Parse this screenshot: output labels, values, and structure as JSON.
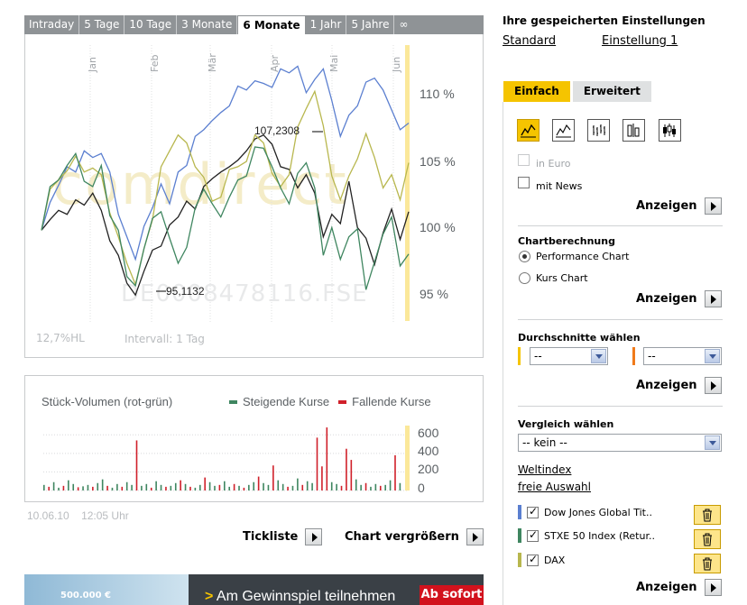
{
  "period_tabs": [
    "Intraday",
    "5 Tage",
    "10 Tage",
    "3 Monate",
    "6 Monate",
    "1 Jahr",
    "5 Jahre",
    "∞"
  ],
  "active_period": "6 Monate",
  "main_chart": {
    "watermark": "comdirect",
    "isin_watermark": "DE0008478116.FSE",
    "hl_label": "12,7%HL",
    "interval_label": "Intervall: 1 Tag",
    "annotation_high": "107,2308",
    "annotation_low": "95,1132",
    "y_ticks": [
      "110 %",
      "105 %",
      "100 %",
      "95 %"
    ],
    "month_labels": [
      "Jan",
      "Feb",
      "Mär",
      "Apr",
      "Mai",
      "Jun"
    ]
  },
  "chart_data": [
    {
      "type": "line",
      "x": [
        0,
        3,
        6,
        9,
        12,
        15,
        18,
        21,
        24,
        27,
        30,
        33,
        36,
        39,
        42,
        45,
        48,
        51,
        54,
        57,
        60,
        63,
        66,
        69,
        72,
        75,
        78,
        81,
        84,
        87,
        90,
        93,
        96,
        99,
        102,
        105,
        108,
        111,
        114,
        117,
        120,
        123,
        126,
        129
      ],
      "series": [
        {
          "color": "#222222",
          "values": [
            100,
            100.8,
            101.5,
            101.2,
            102.3,
            101.9,
            102.8,
            101.5,
            99.2,
            98.1,
            96.0,
            95.1,
            96.9,
            98.5,
            98.8,
            100.4,
            101.0,
            102.2,
            101.6,
            103.3,
            103.9,
            104.4,
            104.8,
            105.3,
            106.0,
            106.9,
            107.2,
            106.5,
            104.8,
            104.6,
            103.2,
            104.2,
            102.8,
            99.5,
            101.2,
            100.5,
            103.7,
            100.2,
            99.4,
            97.4,
            99.8,
            101.6,
            99.3,
            101.4
          ]
        },
        {
          "color": "#5b7fd0",
          "values": [
            100,
            102.1,
            103.4,
            104.8,
            104.4,
            106.0,
            105.5,
            105.8,
            104.4,
            101.2,
            99.5,
            97.8,
            100.3,
            101.7,
            103.5,
            102.0,
            104.4,
            104.9,
            107.1,
            107.6,
            108.3,
            108.9,
            109.4,
            110.9,
            110.6,
            111.3,
            111.1,
            110.8,
            112.2,
            111.9,
            112.4,
            110.4,
            111.4,
            112.2,
            109.8,
            107.1,
            108.7,
            109.4,
            111.2,
            111.5,
            110.6,
            109.1,
            107.6,
            108.1
          ]
        },
        {
          "color": "#b8b74e",
          "values": [
            100,
            103.1,
            103.8,
            104.5,
            105.6,
            104.4,
            104.7,
            104.2,
            101.3,
            99.5,
            97.5,
            95.9,
            98.6,
            100.8,
            104.8,
            106.0,
            107.2,
            106.6,
            104.8,
            104.0,
            102.2,
            102.5,
            104.6,
            104.8,
            105.2,
            107.2,
            106.6,
            104.3,
            103.3,
            104.2,
            107.8,
            109.2,
            110.5,
            107.9,
            104.1,
            102.3,
            104.1,
            105.4,
            107.3,
            105.5,
            103.2,
            104.2,
            102.3,
            105.1
          ]
        },
        {
          "color": "#3f8660",
          "values": [
            100,
            103.3,
            103.8,
            104.9,
            105.8,
            103.7,
            103.3,
            104.9,
            101.1,
            100.0,
            96.5,
            95.8,
            98.6,
            100.9,
            101.4,
            99.4,
            97.5,
            98.7,
            101.7,
            103.1,
            102.0,
            101.0,
            102.5,
            103.8,
            104.1,
            106.3,
            106.2,
            104.8,
            103.2,
            102.0,
            104.3,
            105.1,
            103.2,
            98.1,
            100.2,
            97.8,
            99.5,
            100.1,
            95.5,
            97.6,
            99.7,
            101.0,
            97.3,
            98.2
          ]
        }
      ],
      "y_ticks": [
        "110 %",
        "105 %",
        "100 %",
        "95 %"
      ],
      "x_labels": [
        "Jan",
        "Feb",
        "Mär",
        "Apr",
        "Mai",
        "Jun"
      ],
      "ylim": [
        93,
        114
      ]
    },
    {
      "type": "bar",
      "title": "Stück-Volumen (rot-grün)",
      "legend": [
        "Steigende Kurse",
        "Fallende Kurse"
      ],
      "legend_colors": [
        "#3f8660",
        "#d0202a"
      ],
      "y_ticks": [
        "600",
        "400",
        "200",
        "0"
      ],
      "ylim": [
        0,
        700
      ],
      "values": [
        60,
        40,
        90,
        30,
        50,
        110,
        70,
        35,
        45,
        60,
        40,
        80,
        120,
        50,
        30,
        70,
        40,
        90,
        60,
        540,
        50,
        70,
        30,
        100,
        60,
        40,
        50,
        80,
        110,
        70,
        40,
        30,
        60,
        140,
        90,
        50,
        60,
        100,
        40,
        70,
        50,
        30,
        60,
        90,
        150,
        80,
        60,
        270,
        110,
        70,
        40,
        50,
        130,
        60,
        100,
        80,
        570,
        260,
        680,
        90,
        70,
        50,
        450,
        330,
        120,
        60,
        80,
        40,
        70,
        50,
        60,
        110,
        380,
        80
      ],
      "colors": [
        "g",
        "r",
        "g",
        "g",
        "r",
        "g",
        "g",
        "r",
        "g",
        "g",
        "r",
        "g",
        "g",
        "r",
        "g",
        "g",
        "r",
        "g",
        "g",
        "r",
        "g",
        "g",
        "r",
        "g",
        "g",
        "r",
        "g",
        "g",
        "r",
        "g",
        "r",
        "g",
        "g",
        "r",
        "g",
        "g",
        "r",
        "g",
        "g",
        "r",
        "g",
        "r",
        "g",
        "g",
        "r",
        "g",
        "g",
        "r",
        "g",
        "g",
        "r",
        "g",
        "g",
        "r",
        "g",
        "g",
        "r",
        "r",
        "r",
        "g",
        "g",
        "r",
        "r",
        "r",
        "g",
        "g",
        "r",
        "g",
        "g",
        "r",
        "g",
        "g",
        "r",
        "g"
      ]
    }
  ],
  "volume_chart": {
    "title": "Stück-Volumen (rot-grün)",
    "legend_up": "Steigende Kurse",
    "legend_down": "Fallende Kurse",
    "y_ticks": [
      "600",
      "400",
      "200",
      "0"
    ]
  },
  "timestamp": {
    "date": "10.06.10",
    "time": "12:05 Uhr"
  },
  "actions": {
    "tickliste": "Tickliste",
    "chart_vergroessern": "Chart vergrößern"
  },
  "banner": {
    "image_text": "500.000 €",
    "text_prefix": ">",
    "text": " Am Gewinnspiel teilnehmen",
    "button": "Ab sofort"
  },
  "settings": {
    "title": "Ihre gespeicherten Einstellungen",
    "link_standard": "Standard",
    "link_einstellung": "Einstellung 1"
  },
  "panel_tabs": {
    "simple": "Einfach",
    "advanced": "Erweitert"
  },
  "chart_types": [
    "line-chart-icon",
    "line-chart-icon",
    "ohlc-chart-icon",
    "bar-chart-icon",
    "candlestick-chart-icon"
  ],
  "options": {
    "in_euro": "in Euro",
    "mit_news": "mit News",
    "show": "Anzeigen"
  },
  "calculation": {
    "title": "Chartberechnung",
    "performance": "Performance Chart",
    "kurs": "Kurs Chart"
  },
  "averages": {
    "title": "Durchschnitte wählen",
    "select1": "--",
    "select2": "--",
    "color1": "#f5c400",
    "color2": "#f07a1a"
  },
  "comparison": {
    "title": "Vergleich wählen",
    "select": "-- kein --",
    "link_weltindex": "Weltindex",
    "link_freie": "freie Auswahl",
    "items": [
      {
        "label": "Dow Jones Global Tit..",
        "color": "#5b7fd0"
      },
      {
        "label": "STXE 50 Index (Retur..",
        "color": "#3f8660"
      },
      {
        "label": "DAX",
        "color": "#b8b74e"
      }
    ]
  }
}
